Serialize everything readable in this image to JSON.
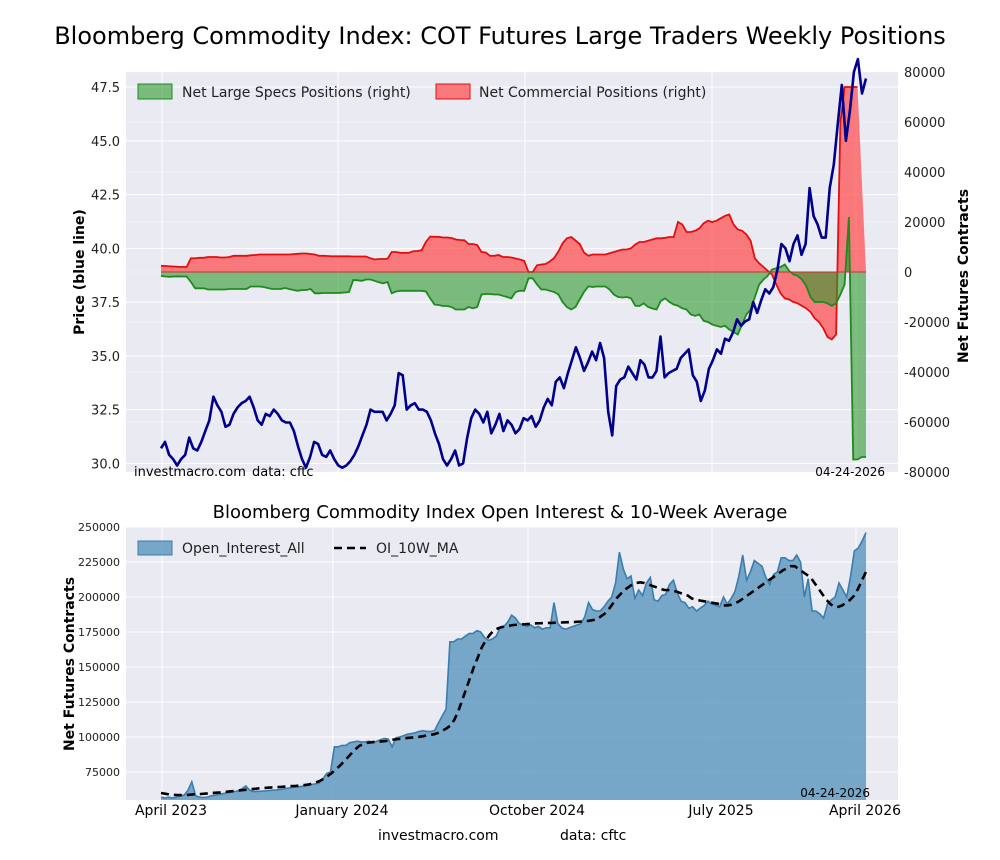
{
  "top_title": "Bloomberg Commodity Index: COT Futures Large Traders Weekly Positions",
  "bottom_title": "Bloomberg Commodity Index Open Interest & 10-Week Average",
  "footer": {
    "site": "investmacro.com",
    "data": "data: cftc"
  },
  "top_watermark": {
    "site": "investmacro.com",
    "data": "data: cftc",
    "date": "04-24-2026"
  },
  "bottom_date": "04-24-2026",
  "colors": {
    "price": "#00008b",
    "specs": "#2e9a2e",
    "commercial": "#ff3b3b",
    "oi": "#4f8fba",
    "ma": "#000000",
    "plot_bg": "#eaeaf2"
  },
  "chart_data": [
    {
      "type": "line",
      "ylabel_left": "Price (blue line)",
      "ylabel_right": "Net Futures Contracts",
      "ylim_left": [
        29.6,
        48.2
      ],
      "ylim_right": [
        -80000,
        80000
      ],
      "yticks_left": [
        "30.0",
        "32.5",
        "35.0",
        "37.5",
        "40.0",
        "42.5",
        "45.0",
        "47.5"
      ],
      "yticks_right": [
        "-80000",
        "-60000",
        "-40000",
        "-20000",
        "0",
        "20000",
        "40000",
        "60000",
        "80000"
      ],
      "legend": [
        "Net Large Specs Positions (right)",
        "Net Commercial Positions (right)"
      ],
      "legend_loc": "upper left",
      "grid": true,
      "price": [
        30.7,
        31.0,
        30.4,
        30.2,
        29.9,
        30.2,
        30.4,
        31.2,
        30.7,
        30.6,
        31.0,
        31.5,
        32.0,
        33.1,
        32.7,
        32.4,
        31.7,
        31.8,
        32.3,
        32.6,
        32.8,
        32.9,
        33.1,
        32.6,
        32.0,
        31.8,
        32.3,
        32.2,
        32.5,
        32.3,
        32.0,
        31.9,
        31.9,
        31.5,
        30.8,
        30.2,
        29.8,
        30.3,
        31.0,
        30.9,
        30.4,
        30.3,
        30.6,
        30.2,
        29.9,
        29.8,
        29.9,
        30.1,
        30.4,
        30.8,
        31.3,
        31.8,
        32.5,
        32.4,
        32.4,
        32.4,
        32.0,
        32.3,
        32.7,
        34.2,
        34.1,
        32.5,
        32.7,
        32.8,
        32.5,
        32.5,
        32.4,
        32.0,
        31.4,
        30.9,
        30.2,
        29.9,
        30.2,
        30.6,
        29.9,
        30.0,
        31.2,
        32.1,
        32.5,
        32.3,
        31.9,
        32.4,
        31.4,
        31.8,
        32.3,
        31.5,
        32.0,
        31.8,
        31.4,
        31.6,
        32.1,
        32.0,
        32.2,
        31.7,
        32.0,
        32.6,
        33.0,
        32.7,
        33.8,
        34.0,
        33.5,
        34.2,
        34.8,
        35.4,
        34.9,
        34.3,
        34.7,
        35.2,
        34.8,
        35.6,
        34.9,
        32.4,
        31.3,
        33.6,
        33.9,
        34.0,
        34.5,
        34.2,
        33.9,
        34.8,
        34.6,
        34.0,
        34.0,
        34.3,
        35.9,
        34.0,
        34.2,
        34.3,
        34.4,
        34.9,
        35.1,
        35.3,
        34.1,
        33.8,
        32.9,
        33.4,
        34.4,
        34.8,
        35.3,
        35.1,
        35.8,
        35.7,
        36.1,
        36.7,
        36.4,
        36.6,
        36.7,
        37.5,
        37.0,
        37.6,
        38.1,
        37.9,
        38.2,
        39.0,
        40.2,
        40.0,
        39.4,
        40.2,
        40.6,
        39.7,
        40.2,
        42.8,
        41.5,
        41.1,
        40.5,
        40.5,
        42.8,
        43.9,
        45.8,
        47.6,
        45.0,
        46.4,
        48.2,
        48.8,
        47.2,
        47.9
      ],
      "net_specs": [
        -1500,
        -1800,
        -1900,
        -1800,
        -1700,
        -1800,
        -1800,
        -4000,
        -6500,
        -6500,
        -6500,
        -7000,
        -7000,
        -7000,
        -7000,
        -7000,
        -6800,
        -6800,
        -6800,
        -6800,
        -6800,
        -5800,
        -5800,
        -5800,
        -6000,
        -6400,
        -6800,
        -6800,
        -6800,
        -6400,
        -6800,
        -7200,
        -7500,
        -7200,
        -7200,
        -6800,
        -8500,
        -8500,
        -8400,
        -8400,
        -8400,
        -8400,
        -8300,
        -8200,
        -8000,
        -3200,
        -3300,
        -3500,
        -3000,
        -3000,
        -3500,
        -4100,
        -4500,
        -4000,
        -8500,
        -7800,
        -7500,
        -7500,
        -7500,
        -7500,
        -7500,
        -7500,
        -7800,
        -10500,
        -13000,
        -13200,
        -13600,
        -13600,
        -14000,
        -15000,
        -15000,
        -15000,
        -14000,
        -14500,
        -14000,
        -9000,
        -8800,
        -8800,
        -9000,
        -9000,
        -9500,
        -10000,
        -10500,
        -8000,
        -7500,
        -7500,
        -2500,
        -2500,
        -5000,
        -7000,
        -7000,
        -7500,
        -8000,
        -9000,
        -12000,
        -14000,
        -15000,
        -14000,
        -11000,
        -8000,
        -5700,
        -6000,
        -5800,
        -5800,
        -5800,
        -7000,
        -9000,
        -10000,
        -10200,
        -10000,
        -10500,
        -13500,
        -13600,
        -12500,
        -14000,
        -14600,
        -15000,
        -11500,
        -10500,
        -12000,
        -13000,
        -13500,
        -14500,
        -15000,
        -17000,
        -17500,
        -17000,
        -19500,
        -20000,
        -21000,
        -21500,
        -22000,
        -21500,
        -23000,
        -24000,
        -25000,
        -21000,
        -17000,
        -15000,
        -10000,
        -5000,
        -3000,
        -1500,
        1000,
        1500,
        2000,
        3000,
        500,
        -1000,
        -1500,
        -3000,
        -5500,
        -10000,
        -12000,
        -12000,
        -12000,
        -12500,
        -13500,
        -12500,
        -9000,
        -5000,
        22000,
        -75000,
        -75000,
        -74000,
        -74000
      ],
      "net_commercial": [
        2500,
        2400,
        2300,
        2200,
        2100,
        2000,
        2000,
        5500,
        5500,
        5700,
        5700,
        6000,
        6000,
        6000,
        5800,
        5800,
        6000,
        6500,
        6500,
        6500,
        6500,
        6700,
        6800,
        7000,
        7000,
        7000,
        7000,
        7000,
        7000,
        7000,
        7000,
        7100,
        7300,
        7400,
        7400,
        7200,
        7000,
        6500,
        6500,
        6400,
        6300,
        6300,
        6300,
        6300,
        6300,
        6200,
        6200,
        6200,
        6200,
        5500,
        5000,
        5200,
        5200,
        5300,
        8000,
        8000,
        7700,
        7700,
        7700,
        8300,
        8400,
        8700,
        12000,
        14200,
        14100,
        14100,
        13800,
        13800,
        13600,
        13000,
        12800,
        12700,
        11200,
        11200,
        10800,
        8000,
        7800,
        6500,
        6500,
        6800,
        6000,
        6000,
        5800,
        5400,
        5000,
        4500,
        0,
        0,
        2700,
        3000,
        3200,
        4200,
        5600,
        8200,
        11500,
        13500,
        14000,
        12600,
        11200,
        7800,
        6500,
        7000,
        7000,
        7000,
        7000,
        7500,
        8000,
        8500,
        9000,
        9000,
        9500,
        11000,
        12000,
        12000,
        12500,
        13000,
        13500,
        13500,
        13700,
        14000,
        14000,
        20000,
        19000,
        16000,
        16000,
        16500,
        17500,
        19500,
        20500,
        20000,
        20500,
        21500,
        22500,
        23000,
        19000,
        17000,
        16500,
        15000,
        12500,
        5500,
        3500,
        2000,
        500,
        -1000,
        -5000,
        -8500,
        -10500,
        -11000,
        -12000,
        -12500,
        -13500,
        -14500,
        -16000,
        -18500,
        -20000,
        -22500,
        -26000,
        -27000,
        -25000,
        60000,
        74000,
        74000,
        74000,
        74000
      ]
    },
    {
      "type": "area",
      "ylabel": "Net Futures Contracts",
      "ylim": [
        55000,
        250000
      ],
      "yticks": [
        "75000",
        "100000",
        "125000",
        "150000",
        "175000",
        "200000",
        "225000",
        "250000"
      ],
      "xticks": [
        "April 2023",
        "January 2024",
        "October 2024",
        "July 2025",
        "April 2026"
      ],
      "legend": [
        "Open_Interest_All",
        "OI_10W_MA"
      ],
      "legend_loc": "upper left",
      "grid": true,
      "open_interest": [
        57000,
        56500,
        57000,
        56500,
        57000,
        58000,
        58500,
        62000,
        68000,
        58000,
        57000,
        56800,
        57000,
        58000,
        58500,
        59000,
        59500,
        60000,
        60500,
        61000,
        61500,
        63000,
        65000,
        62000,
        61000,
        61200,
        61300,
        61500,
        61800,
        62000,
        62200,
        62600,
        63000,
        63500,
        64000,
        64300,
        64500,
        65000,
        65300,
        66000,
        66500,
        67000,
        70000,
        74000,
        75000,
        93000,
        93000,
        94000,
        94000,
        96000,
        96500,
        97000,
        96500,
        96500,
        97000,
        96000,
        97000,
        98000,
        99000,
        98500,
        93000,
        99500,
        100000,
        101000,
        102000,
        102500,
        103000,
        104000,
        104500,
        104000,
        104000,
        104500,
        110000,
        115000,
        120000,
        168000,
        168000,
        170000,
        170000,
        172000,
        174000,
        174000,
        176000,
        175000,
        171000,
        169000,
        170000,
        172000,
        178000,
        179000,
        182000,
        187000,
        185000,
        181000,
        180000,
        179000,
        180000,
        178000,
        179000,
        177000,
        178000,
        178000,
        196000,
        181000,
        178000,
        177000,
        178000,
        179000,
        180000,
        181000,
        186000,
        196000,
        191000,
        190000,
        190000,
        193000,
        197000,
        200000,
        210000,
        232000,
        220000,
        213000,
        215000,
        199000,
        205000,
        201000,
        210000,
        214000,
        198000,
        197000,
        201000,
        202000,
        209000,
        212000,
        203000,
        197000,
        196000,
        192000,
        193000,
        190000,
        192000,
        194000,
        197000,
        195000,
        194000,
        193000,
        200000,
        195000,
        199000,
        204000,
        215000,
        230000,
        212000,
        218000,
        226000,
        224000,
        222000,
        214000,
        209000,
        216000,
        218000,
        228000,
        228000,
        226000,
        226000,
        230000,
        225000,
        200000,
        213000,
        190000,
        190000,
        188000,
        185000,
        195000,
        198000,
        200000,
        210000,
        205000,
        200000,
        215000,
        233000,
        235000,
        240000,
        246000
      ],
      "oi_10w_ma": [
        60000,
        59500,
        59000,
        58800,
        58600,
        58500,
        58400,
        58700,
        59000,
        59200,
        59300,
        59500,
        59700,
        60000,
        60200,
        60400,
        60700,
        61000,
        61300,
        61600,
        61900,
        62200,
        62500,
        62800,
        63100,
        63400,
        63600,
        63800,
        64000,
        64200,
        64300,
        64500,
        64700,
        64900,
        65100,
        65300,
        65600,
        66000,
        66500,
        67500,
        68500,
        70000,
        72000,
        74000,
        76500,
        79000,
        82000,
        85000,
        88000,
        91000,
        93500,
        95000,
        95800,
        96200,
        96500,
        96700,
        96900,
        97200,
        97800,
        98300,
        98600,
        98900,
        99200,
        99500,
        99800,
        100100,
        100500,
        101000,
        101500,
        102000,
        103000,
        104500,
        106000,
        108000,
        112000,
        118000,
        126000,
        134000,
        142000,
        150000,
        157000,
        164000,
        169000,
        173000,
        176000,
        177500,
        178500,
        179000,
        179500,
        180000,
        180200,
        180400,
        180600,
        180800,
        181000,
        181200,
        181300,
        181400,
        181500,
        181600,
        181700,
        181800,
        181900,
        182000,
        182100,
        182300,
        182500,
        182800,
        183000,
        183500,
        184000,
        186000,
        188000,
        191000,
        195000,
        199000,
        202000,
        205000,
        207000,
        209000,
        210000,
        210500,
        210000,
        209000,
        208000,
        207000,
        206000,
        205000,
        205000,
        204500,
        204000,
        203000,
        202000,
        201000,
        199000,
        198000,
        197500,
        197000,
        196500,
        196000,
        195500,
        195000,
        194000,
        194000,
        194500,
        195500,
        197000,
        199000,
        201000,
        203000,
        205000,
        207000,
        209000,
        211000,
        213000,
        215000,
        217000,
        219000,
        220500,
        222000,
        222000,
        220000,
        218000,
        216000,
        214000,
        210000,
        206000,
        202000,
        198000,
        195000,
        193000,
        193000,
        194000,
        196000,
        198000,
        201000,
        206000,
        212000,
        218000
      ]
    }
  ]
}
